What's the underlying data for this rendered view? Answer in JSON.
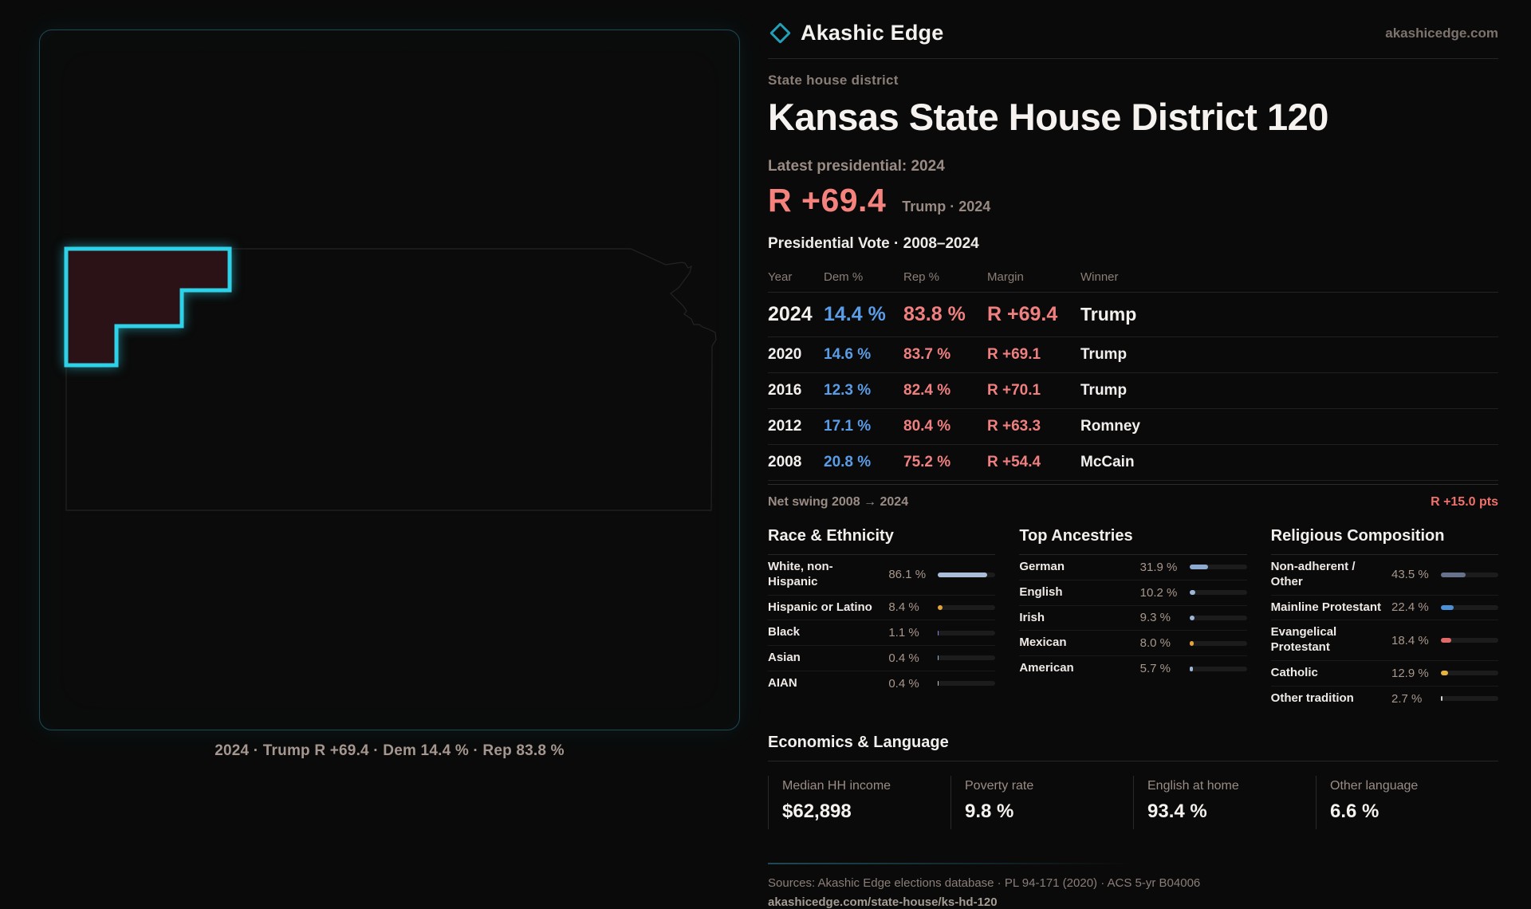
{
  "brand": {
    "name": "Akashic Edge",
    "site": "akashicedge.com"
  },
  "header": {
    "kicker": "State house district",
    "title": "Kansas State House District 120"
  },
  "headline": {
    "label": "Latest presidential: 2024",
    "margin": "R +69.4",
    "context": "Trump · 2024"
  },
  "vote_table": {
    "title": "Presidential Vote · 2008–2024",
    "columns": [
      "Year",
      "Dem %",
      "Rep %",
      "Margin",
      "Winner"
    ],
    "rows": [
      {
        "year": "2024",
        "dem": "14.4 %",
        "rep": "83.8 %",
        "margin": "R +69.4",
        "winner": "Trump",
        "featured": true
      },
      {
        "year": "2020",
        "dem": "14.6 %",
        "rep": "83.7 %",
        "margin": "R +69.1",
        "winner": "Trump",
        "featured": false
      },
      {
        "year": "2016",
        "dem": "12.3 %",
        "rep": "82.4 %",
        "margin": "R +70.1",
        "winner": "Trump",
        "featured": false
      },
      {
        "year": "2012",
        "dem": "17.1 %",
        "rep": "80.4 %",
        "margin": "R +63.3",
        "winner": "Romney",
        "featured": false
      },
      {
        "year": "2008",
        "dem": "20.8 %",
        "rep": "75.2 %",
        "margin": "R +54.4",
        "winner": "McCain",
        "featured": false
      }
    ]
  },
  "net_swing": {
    "label": "Net swing 2008 → 2024",
    "value": "R +15.0 pts"
  },
  "demographics": [
    {
      "title": "Race & Ethnicity",
      "rows": [
        {
          "label": "White, non-Hispanic",
          "value": "86.1 %",
          "pct": 86.1,
          "color": "#a9bdd9"
        },
        {
          "label": "Hispanic or Latino",
          "value": "8.4 %",
          "pct": 8.4,
          "color": "#e3a33c"
        },
        {
          "label": "Black",
          "value": "1.1 %",
          "pct": 1.1,
          "color": "#8b7fe8"
        },
        {
          "label": "Asian",
          "value": "0.4 %",
          "pct": 0.4,
          "color": "#9fb4d4"
        },
        {
          "label": "AIAN",
          "value": "0.4 %",
          "pct": 0.4,
          "color": "#c9c2bc"
        }
      ]
    },
    {
      "title": "Top Ancestries",
      "rows": [
        {
          "label": "German",
          "value": "31.9 %",
          "pct": 31.9,
          "color": "#8ea9cf"
        },
        {
          "label": "English",
          "value": "10.2 %",
          "pct": 10.2,
          "color": "#9db6d6"
        },
        {
          "label": "Irish",
          "value": "9.3 %",
          "pct": 9.3,
          "color": "#9db6d6"
        },
        {
          "label": "Mexican",
          "value": "8.0 %",
          "pct": 8.0,
          "color": "#e3a33c"
        },
        {
          "label": "American",
          "value": "5.7 %",
          "pct": 5.7,
          "color": "#9db6d6"
        }
      ]
    },
    {
      "title": "Religious Composition",
      "rows": [
        {
          "label": "Non-adherent / Other",
          "value": "43.5 %",
          "pct": 43.5,
          "color": "#67718a"
        },
        {
          "label": "Mainline Protestant",
          "value": "22.4 %",
          "pct": 22.4,
          "color": "#4a90d9"
        },
        {
          "label": "Evangelical Protestant",
          "value": "18.4 %",
          "pct": 18.4,
          "color": "#e06a6a"
        },
        {
          "label": "Catholic",
          "value": "12.9 %",
          "pct": 12.9,
          "color": "#e6b33c"
        },
        {
          "label": "Other tradition",
          "value": "2.7 %",
          "pct": 2.7,
          "color": "#d9d4cf"
        }
      ]
    }
  ],
  "economics": {
    "title": "Economics & Language",
    "stats": [
      {
        "label": "Median HH income",
        "value": "$62,898"
      },
      {
        "label": "Poverty rate",
        "value": "9.8 %"
      },
      {
        "label": "English at home",
        "value": "93.4 %"
      },
      {
        "label": "Other language",
        "value": "6.6 %"
      }
    ]
  },
  "map": {
    "caption": "2024 · Trump R +69.4 · Dem 14.4 % · Rep 83.8 %"
  },
  "footer": {
    "sources": "Sources: Akashic Edge elections database · PL 94-171 (2020) · ACS 5-yr B04006",
    "permalink": "akashicedge.com/state-house/ks-hd-120"
  },
  "colors": {
    "accent_teal": "#2ed2e8",
    "rep_red": "#f08080",
    "dem_blue": "#5b9ce6",
    "district_fill": "#2a1216"
  }
}
